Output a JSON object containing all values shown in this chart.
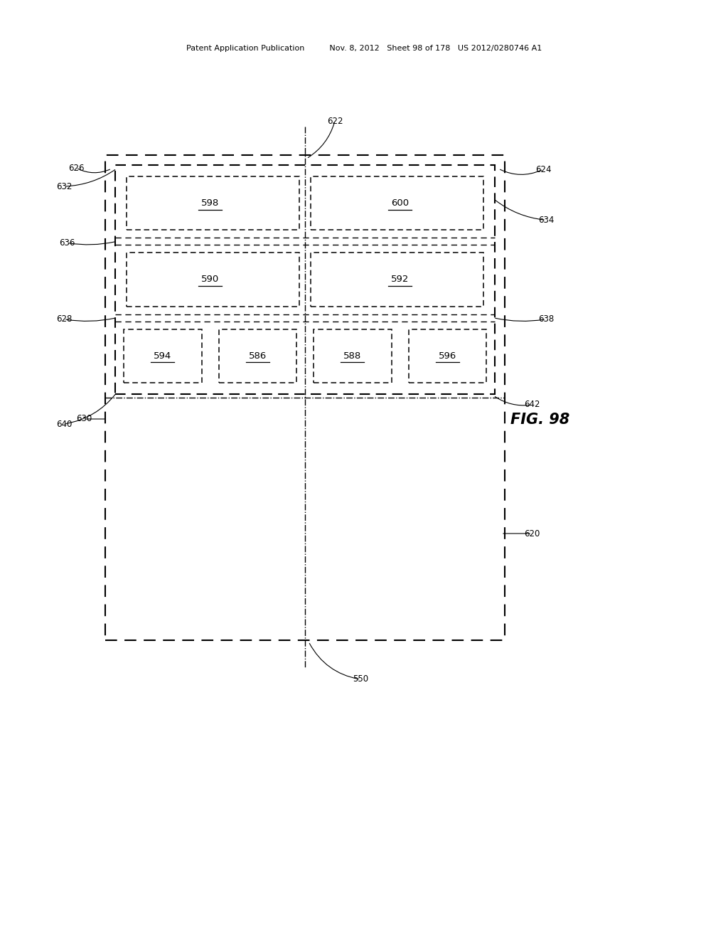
{
  "header": "Patent Application Publication          Nov. 8, 2012   Sheet 98 of 178   US 2012/0280746 A1",
  "fig_label": "FIG. 98",
  "bg_color": "#ffffff",
  "line_color": "#000000"
}
